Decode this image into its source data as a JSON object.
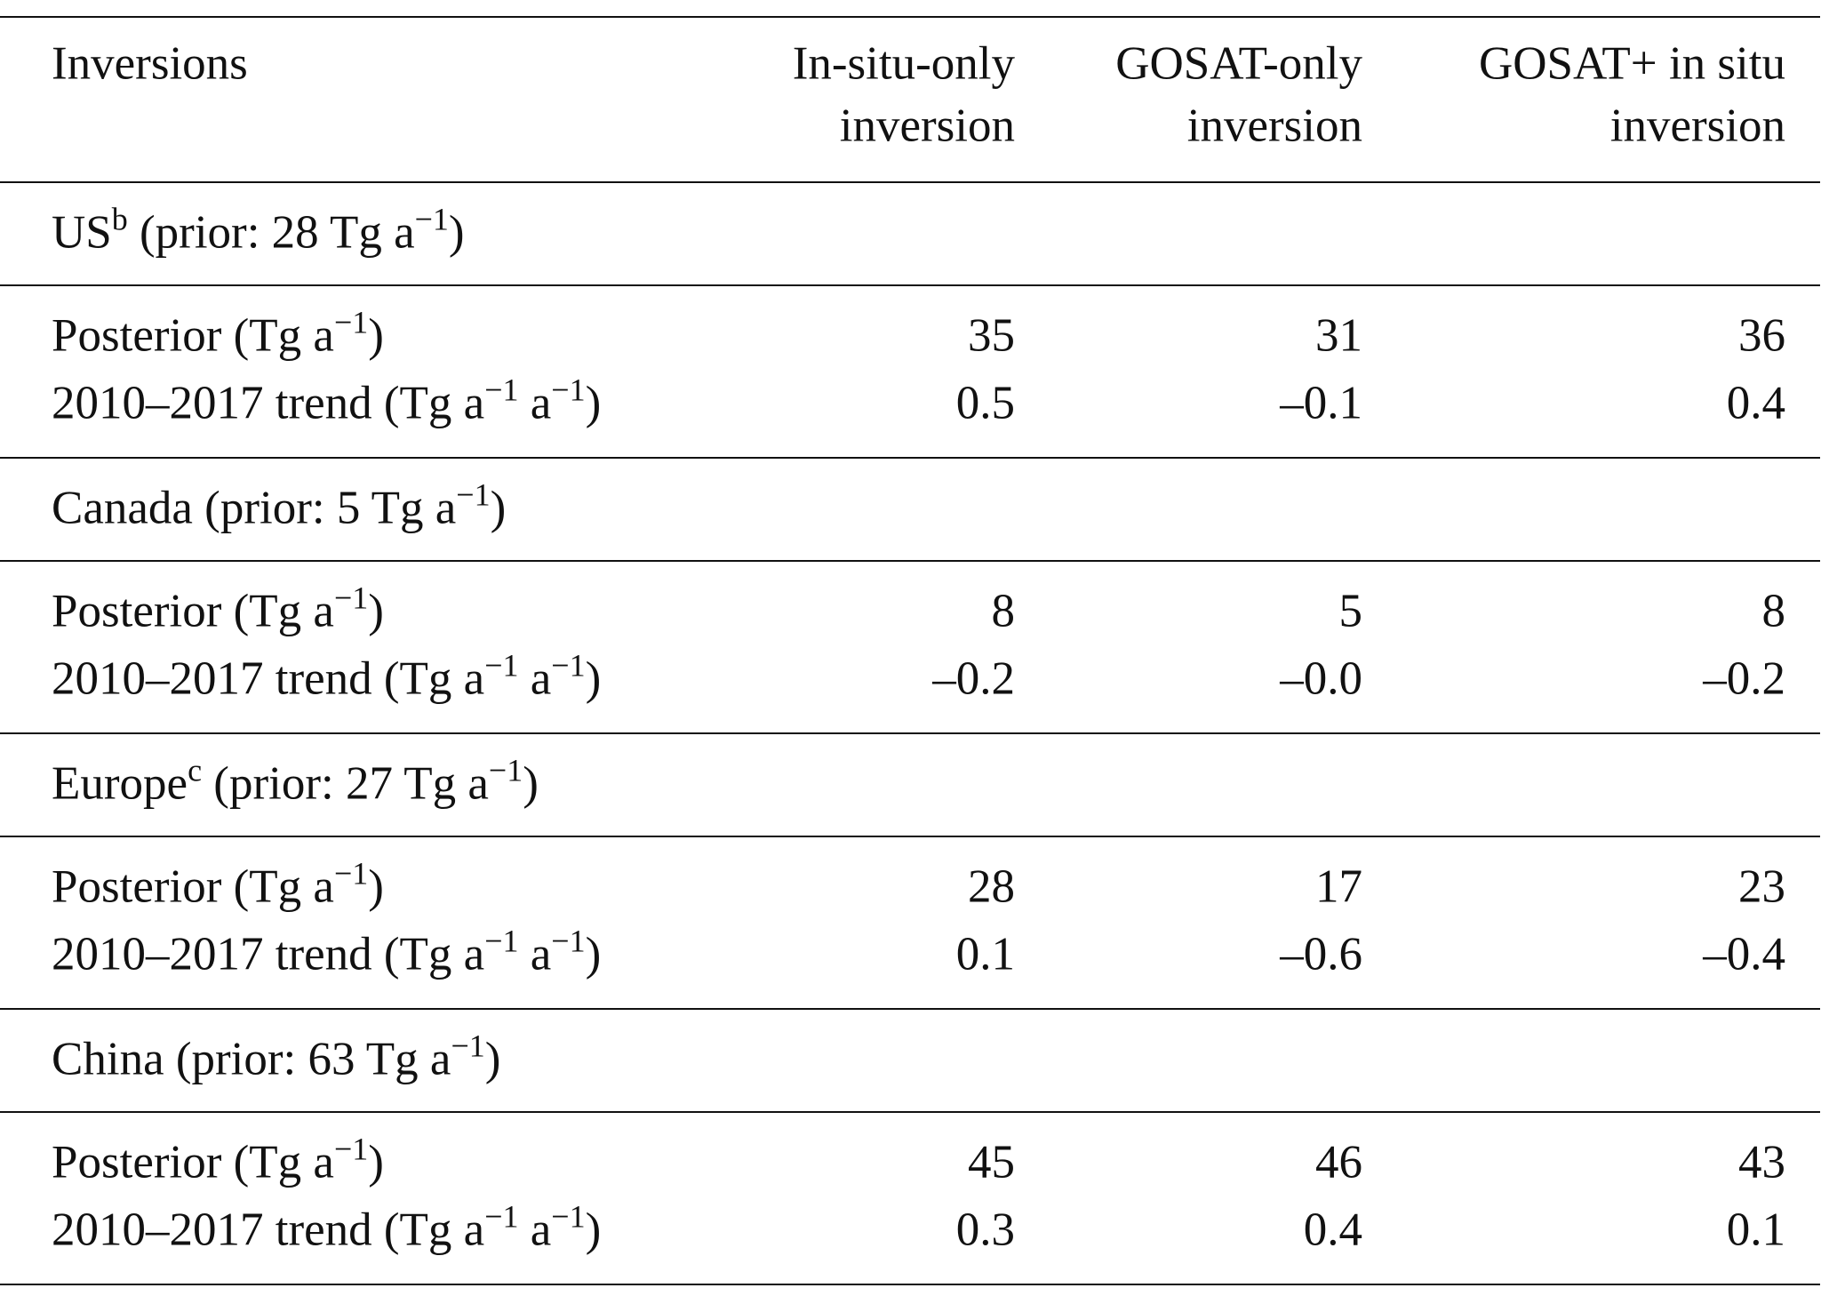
{
  "table": {
    "header": [
      [
        {
          "t": "Inversions"
        }
      ],
      [
        {
          "t": "In-situ-only"
        },
        {
          "t": "inversion"
        }
      ],
      [
        {
          "t": "GOSAT-only"
        },
        {
          "t": "inversion"
        }
      ],
      [
        {
          "t": "GOSAT+ in situ"
        },
        {
          "t": "inversion"
        }
      ]
    ],
    "groups": [
      {
        "label": [
          {
            "t": "US"
          },
          {
            "sup": "b"
          },
          {
            "t": " (prior: 28 Tg a"
          },
          {
            "sup": "−1"
          },
          {
            "t": ")"
          }
        ],
        "rows": [
          {
            "label": [
              {
                "t": "Posterior (Tg a"
              },
              {
                "sup": "−1"
              },
              {
                "t": ")"
              }
            ],
            "values": [
              "35",
              "31",
              "36"
            ]
          },
          {
            "label": [
              {
                "t": "2010–2017 trend (Tg a"
              },
              {
                "sup": "−1"
              },
              {
                "t": " a"
              },
              {
                "sup": "−1"
              },
              {
                "t": ")"
              }
            ],
            "values": [
              "0.5",
              "–0.1",
              "0.4"
            ]
          }
        ]
      },
      {
        "label": [
          {
            "t": "Canada (prior: 5 Tg a"
          },
          {
            "sup": "−1"
          },
          {
            "t": ")"
          }
        ],
        "rows": [
          {
            "label": [
              {
                "t": "Posterior (Tg a"
              },
              {
                "sup": "−1"
              },
              {
                "t": ")"
              }
            ],
            "values": [
              "8",
              "5",
              "8"
            ]
          },
          {
            "label": [
              {
                "t": "2010–2017 trend (Tg a"
              },
              {
                "sup": "−1"
              },
              {
                "t": " a"
              },
              {
                "sup": "−1"
              },
              {
                "t": ")"
              }
            ],
            "values": [
              "–0.2",
              "–0.0",
              "–0.2"
            ]
          }
        ]
      },
      {
        "label": [
          {
            "t": "Europe"
          },
          {
            "sup": "c"
          },
          {
            "t": " (prior: 27 Tg a"
          },
          {
            "sup": "−1"
          },
          {
            "t": ")"
          }
        ],
        "rows": [
          {
            "label": [
              {
                "t": "Posterior (Tg a"
              },
              {
                "sup": "−1"
              },
              {
                "t": ")"
              }
            ],
            "values": [
              "28",
              "17",
              "23"
            ]
          },
          {
            "label": [
              {
                "t": "2010–2017 trend (Tg a"
              },
              {
                "sup": "−1"
              },
              {
                "t": " a"
              },
              {
                "sup": "−1"
              },
              {
                "t": ")"
              }
            ],
            "values": [
              "0.1",
              "–0.6",
              "–0.4"
            ]
          }
        ]
      },
      {
        "label": [
          {
            "t": "China (prior: 63 Tg a"
          },
          {
            "sup": "−1"
          },
          {
            "t": ")"
          }
        ],
        "rows": [
          {
            "label": [
              {
                "t": "Posterior (Tg a"
              },
              {
                "sup": "−1"
              },
              {
                "t": ")"
              }
            ],
            "values": [
              "45",
              "46",
              "43"
            ]
          },
          {
            "label": [
              {
                "t": "2010–2017 trend (Tg a"
              },
              {
                "sup": "−1"
              },
              {
                "t": " a"
              },
              {
                "sup": "−1"
              },
              {
                "t": ")"
              }
            ],
            "values": [
              "0.3",
              "0.4",
              "0.1"
            ]
          }
        ]
      }
    ]
  }
}
